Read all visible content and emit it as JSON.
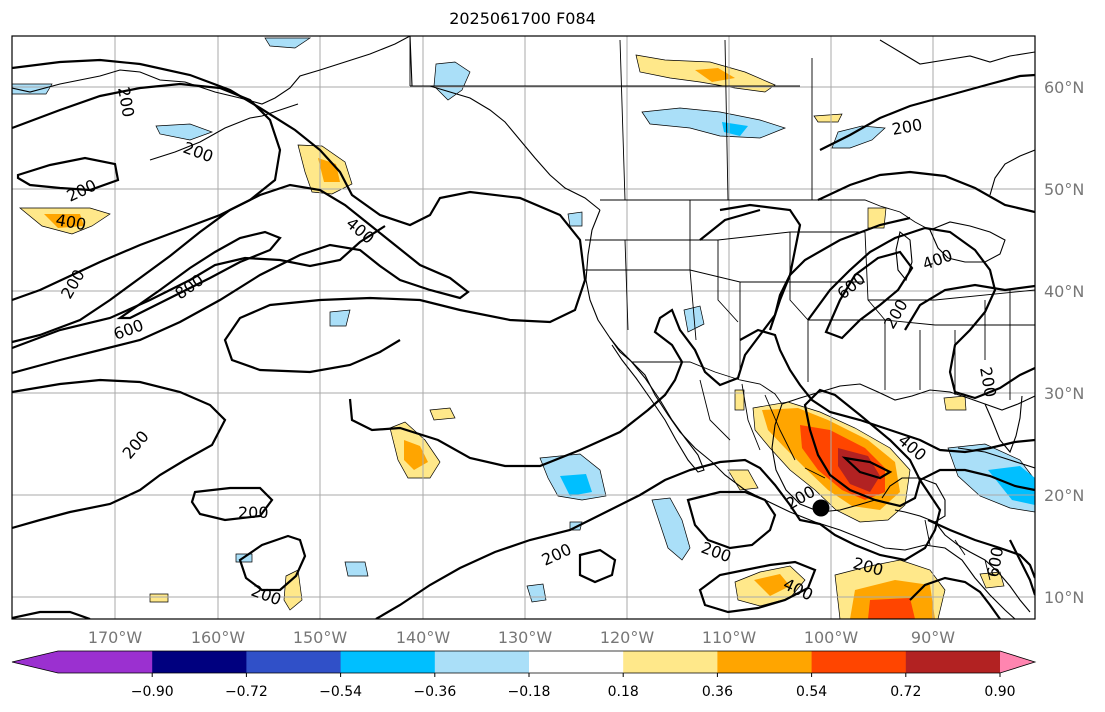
{
  "title": "2025061700 F084",
  "map": {
    "lon_labels": [
      "170°W",
      "160°W",
      "150°W",
      "140°W",
      "130°W",
      "120°W",
      "110°W",
      "100°W",
      "90°W"
    ],
    "lat_labels": [
      "60°N",
      "50°N",
      "40°N",
      "30°N",
      "20°N",
      "10°N"
    ],
    "grid": true,
    "contour_levels": [
      "200",
      "400",
      "600",
      "800"
    ],
    "contour_labels": [
      {
        "text": "200",
        "name": "contour-label-200"
      },
      {
        "text": "200",
        "name": "contour-label-200"
      },
      {
        "text": "400",
        "name": "contour-label-400"
      },
      {
        "text": "400",
        "name": "contour-label-400"
      },
      {
        "text": "200",
        "name": "contour-label-200"
      },
      {
        "text": "800",
        "name": "contour-label-800"
      },
      {
        "text": "600",
        "name": "contour-label-600"
      },
      {
        "text": "200",
        "name": "contour-label-200"
      },
      {
        "text": "200",
        "name": "contour-label-200"
      },
      {
        "text": "200",
        "name": "contour-label-200"
      },
      {
        "text": "200",
        "name": "contour-label-200"
      },
      {
        "text": "200",
        "name": "contour-label-200"
      },
      {
        "text": "200",
        "name": "contour-label-200"
      },
      {
        "text": "200",
        "name": "contour-label-200"
      },
      {
        "text": "400",
        "name": "contour-label-400"
      },
      {
        "text": "600",
        "name": "contour-label-600"
      },
      {
        "text": "200",
        "name": "contour-label-200"
      },
      {
        "text": "200",
        "name": "contour-label-200"
      },
      {
        "text": "400",
        "name": "contour-label-400"
      },
      {
        "text": "400",
        "name": "contour-label-400"
      },
      {
        "text": "200",
        "name": "contour-label-200"
      },
      {
        "text": "600",
        "name": "contour-label-600"
      },
      {
        "text": "200",
        "name": "contour-label-200"
      },
      {
        "text": "400",
        "name": "contour-label-400"
      }
    ],
    "marker": {
      "name": "storm-center-marker"
    }
  },
  "colorbar": {
    "ticks": [
      "−0.90",
      "−0.72",
      "−0.54",
      "−0.36",
      "−0.18",
      "0.18",
      "0.36",
      "0.54",
      "0.72",
      "0.90"
    ],
    "colors": {
      "under": "#9b30d0",
      "bins": [
        "#9b30d0",
        "#00007f",
        "#3050c8",
        "#00bfff",
        "#aadff8",
        "#ffffff",
        "#ffe88a",
        "#ffa500",
        "#ff4500",
        "#b22222"
      ],
      "over": "#ff85b0"
    }
  }
}
